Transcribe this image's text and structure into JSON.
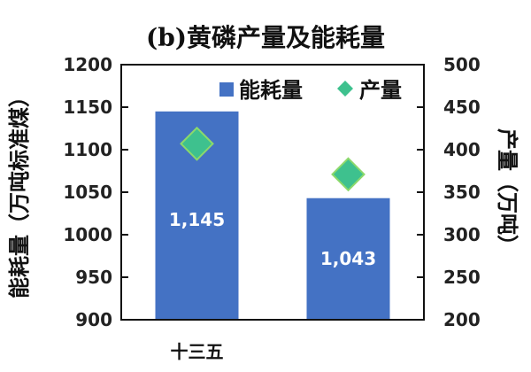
{
  "chart_data": {
    "type": "bar",
    "title": "(b)黄磷产量及能耗量",
    "categories": [
      "十三五",
      ""
    ],
    "series": [
      {
        "name": "能耗量",
        "kind": "bar",
        "axis": "left",
        "values": [
          1145,
          1043
        ],
        "data_labels": [
          "1,145",
          "1,043"
        ],
        "color": "#4472C4"
      },
      {
        "name": "产量",
        "kind": "scatter",
        "marker": "diamond",
        "axis": "right",
        "values": [
          407,
          371
        ],
        "color": "#3EC18E"
      }
    ],
    "ylabel": "能耗量（万吨标准煤）",
    "ylabel_right": "产量（万吨）",
    "ylim": [
      900,
      1200
    ],
    "ylim_right": [
      200,
      500
    ],
    "yticks": [
      "900",
      "950",
      "1000",
      "1050",
      "1100",
      "1150",
      "1200"
    ],
    "yticks_right": [
      "200",
      "250",
      "300",
      "350",
      "400",
      "450",
      "500"
    ],
    "grid": false,
    "legend_position": "top-right"
  }
}
